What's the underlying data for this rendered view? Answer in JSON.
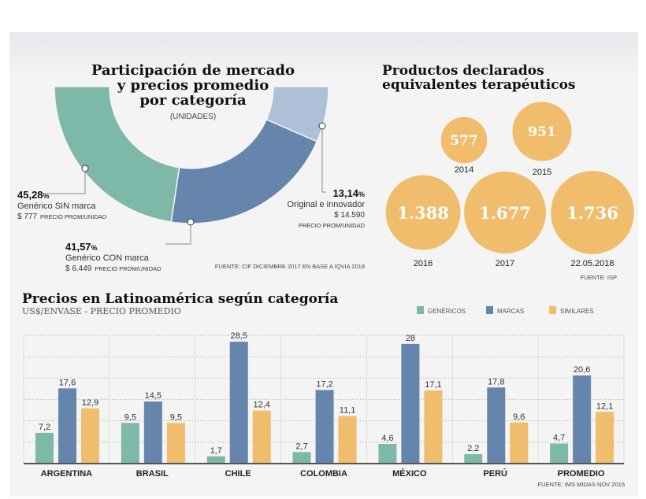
{
  "colors": {
    "genericos": "#7db8a8",
    "marcas": "#6685ad",
    "original": "#adc0d8",
    "similares": "#f0bd6c",
    "bubble": "#f0bd6c"
  },
  "chart_data": [
    {
      "type": "pie",
      "title": "Participación de mercado y precios promedio por categoría",
      "title_lines": [
        "Participación de mercado",
        "y precios promedio",
        "por categoría"
      ],
      "subtitle": "(UNIDADES)",
      "shape": "half-donut",
      "slices": [
        {
          "pct_label": "45,28",
          "value": 45.28,
          "pct_sign": "%",
          "name": "Genérico SIN marca",
          "price": "$ 777",
          "price_note": "PRECIO PROM/UNIDAD"
        },
        {
          "pct_label": "41,57",
          "value": 41.57,
          "pct_sign": "%",
          "name": "Genérico CON marca",
          "price": "$ 6.449",
          "price_note": "PRECIO PROM/UNIDAD"
        },
        {
          "pct_label": "13,14",
          "value": 13.14,
          "pct_sign": "%",
          "name": "Original e innovador",
          "price": "$ 14.590",
          "price_note": "PRECIO PROM/UNIDAD"
        }
      ],
      "source": "FUENTE: CIF DICIEMBRE 2017 EN BASE A IQVIA 2018"
    },
    {
      "type": "scatter",
      "shape": "bubbles",
      "title_lines": [
        "Productos declarados",
        "equivalentes terapéuticos"
      ],
      "points": [
        {
          "label": "577",
          "value": 577,
          "year": "2014"
        },
        {
          "label": "951",
          "value": 951,
          "year": "2015"
        },
        {
          "label": "1.388",
          "value": 1388,
          "year": "2016"
        },
        {
          "label": "1.677",
          "value": 1677,
          "year": "2017"
        },
        {
          "label": "1.736",
          "value": 1736,
          "year": "22.05.2018"
        }
      ],
      "source": "FUENTE: ISP"
    },
    {
      "type": "bar",
      "title": "Precios en Latinoamérica según categoría",
      "subtitle": "US$/ENVASE - PRECIO PROMEDIO",
      "categories": [
        "ARGENTINA",
        "BRASIL",
        "CHILE",
        "COLOMBIA",
        "MÉXICO",
        "PERÚ",
        "PROMEDIO"
      ],
      "series": [
        {
          "name": "GENÉRICOS",
          "values": [
            7.2,
            9.5,
            1.7,
            2.7,
            4.6,
            2.2,
            4.7
          ],
          "labels": [
            "7,2",
            "9,5",
            "1,7",
            "2,7",
            "4,6",
            "2,2",
            "4,7"
          ]
        },
        {
          "name": "MARCAS",
          "values": [
            17.6,
            14.5,
            28.5,
            17.2,
            28,
            17.8,
            20.6
          ],
          "labels": [
            "17,6",
            "14,5",
            "28,5",
            "17,2",
            "28",
            "17,8",
            "20,6"
          ]
        },
        {
          "name": "SIMILARES",
          "values": [
            12.9,
            9.5,
            12.4,
            11.1,
            17.1,
            9.6,
            12.1
          ],
          "labels": [
            "12,9",
            "9,5",
            "12,4",
            "11,1",
            "17,1",
            "9,6",
            "12,1"
          ]
        }
      ],
      "ylim": [
        0,
        30
      ],
      "grid": "dotted horizontal every 5",
      "legend": "top-right",
      "source": "FUENTE: IMS MIDAS NOV 2015"
    }
  ]
}
